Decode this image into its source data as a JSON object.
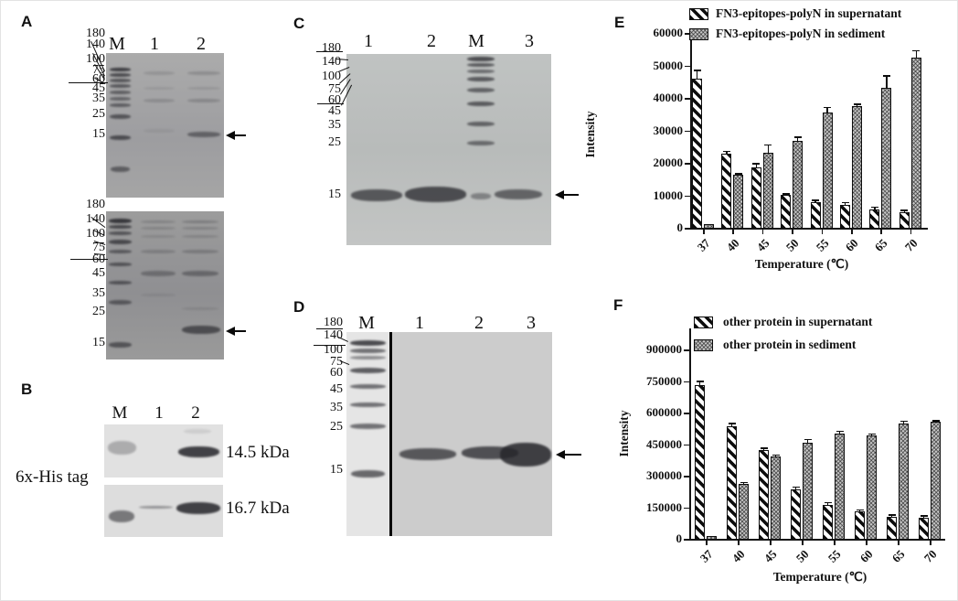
{
  "panels": {
    "a": {
      "letter": "A",
      "lanes": [
        "M",
        "1",
        "2"
      ],
      "ladder": [
        "180",
        "140",
        "100",
        "75",
        "60",
        "45",
        "35",
        "25",
        "15"
      ]
    },
    "b": {
      "letter": "B",
      "lanes": [
        "M",
        "1",
        "2"
      ],
      "side_label": "6x-His tag",
      "band_labels": [
        "14.5 kDa",
        "16.7 kDa"
      ]
    },
    "c": {
      "letter": "C",
      "lanes": [
        "1",
        "2",
        "M",
        "3"
      ],
      "ladder": [
        "180",
        "140",
        "100",
        "75",
        "60",
        "45",
        "35",
        "25",
        "15"
      ]
    },
    "d": {
      "letter": "D",
      "lanes": [
        "M",
        "1",
        "2",
        "3"
      ],
      "ladder": [
        "180",
        "140",
        "100",
        "75",
        "60",
        "45",
        "35",
        "25",
        "15"
      ]
    },
    "e": {
      "letter": "E"
    },
    "f": {
      "letter": "F"
    }
  },
  "chart_data": [
    {
      "panel": "E",
      "type": "bar",
      "title": "",
      "categories": [
        "37",
        "40",
        "45",
        "50",
        "55",
        "60",
        "65",
        "70"
      ],
      "series": [
        {
          "name": "FN3-epitopes-polyN in supernatant",
          "pattern": "diagonal-hatch",
          "values": [
            46000,
            22800,
            18600,
            10100,
            7900,
            7000,
            5600,
            4700
          ],
          "errors": [
            2600,
            1000,
            1300,
            600,
            700,
            900,
            1000,
            800
          ]
        },
        {
          "name": "FN3-epitopes-polyN in sediment",
          "pattern": "dot-grid",
          "values": [
            1100,
            16300,
            23200,
            26800,
            35600,
            37400,
            43000,
            52500
          ],
          "errors": [
            0,
            600,
            2500,
            1300,
            1700,
            800,
            4000,
            2200
          ]
        }
      ],
      "xlabel": "Temperature (℃)",
      "ylabel": "Intensity",
      "ylim": [
        0,
        60000
      ],
      "yticks": [
        0,
        10000,
        20000,
        30000,
        40000,
        50000,
        60000
      ],
      "legend_position": "top-left",
      "grid": false
    },
    {
      "panel": "F",
      "type": "bar",
      "title": "",
      "categories": [
        "37",
        "40",
        "45",
        "50",
        "55",
        "60",
        "65",
        "70"
      ],
      "series": [
        {
          "name": "other protein in supernatant",
          "pattern": "diagonal-hatch",
          "values": [
            730000,
            535000,
            420000,
            235000,
            160000,
            130000,
            105000,
            98000
          ],
          "errors": [
            22000,
            16000,
            14000,
            14000,
            14000,
            11000,
            11000,
            13000
          ]
        },
        {
          "name": "other protein in sediment",
          "pattern": "dot-grid",
          "values": [
            15000,
            260000,
            393000,
            455000,
            500000,
            492000,
            548000,
            555000
          ],
          "errors": [
            0,
            11000,
            9000,
            20000,
            15000,
            10000,
            13000,
            10000
          ]
        }
      ],
      "xlabel": "Temperature (℃)",
      "ylabel": "Intensity",
      "ylim": [
        0,
        1000000
      ],
      "yticks": [
        0,
        150000,
        300000,
        450000,
        600000,
        750000,
        900000
      ],
      "legend_position": "top-left",
      "grid": false
    }
  ]
}
